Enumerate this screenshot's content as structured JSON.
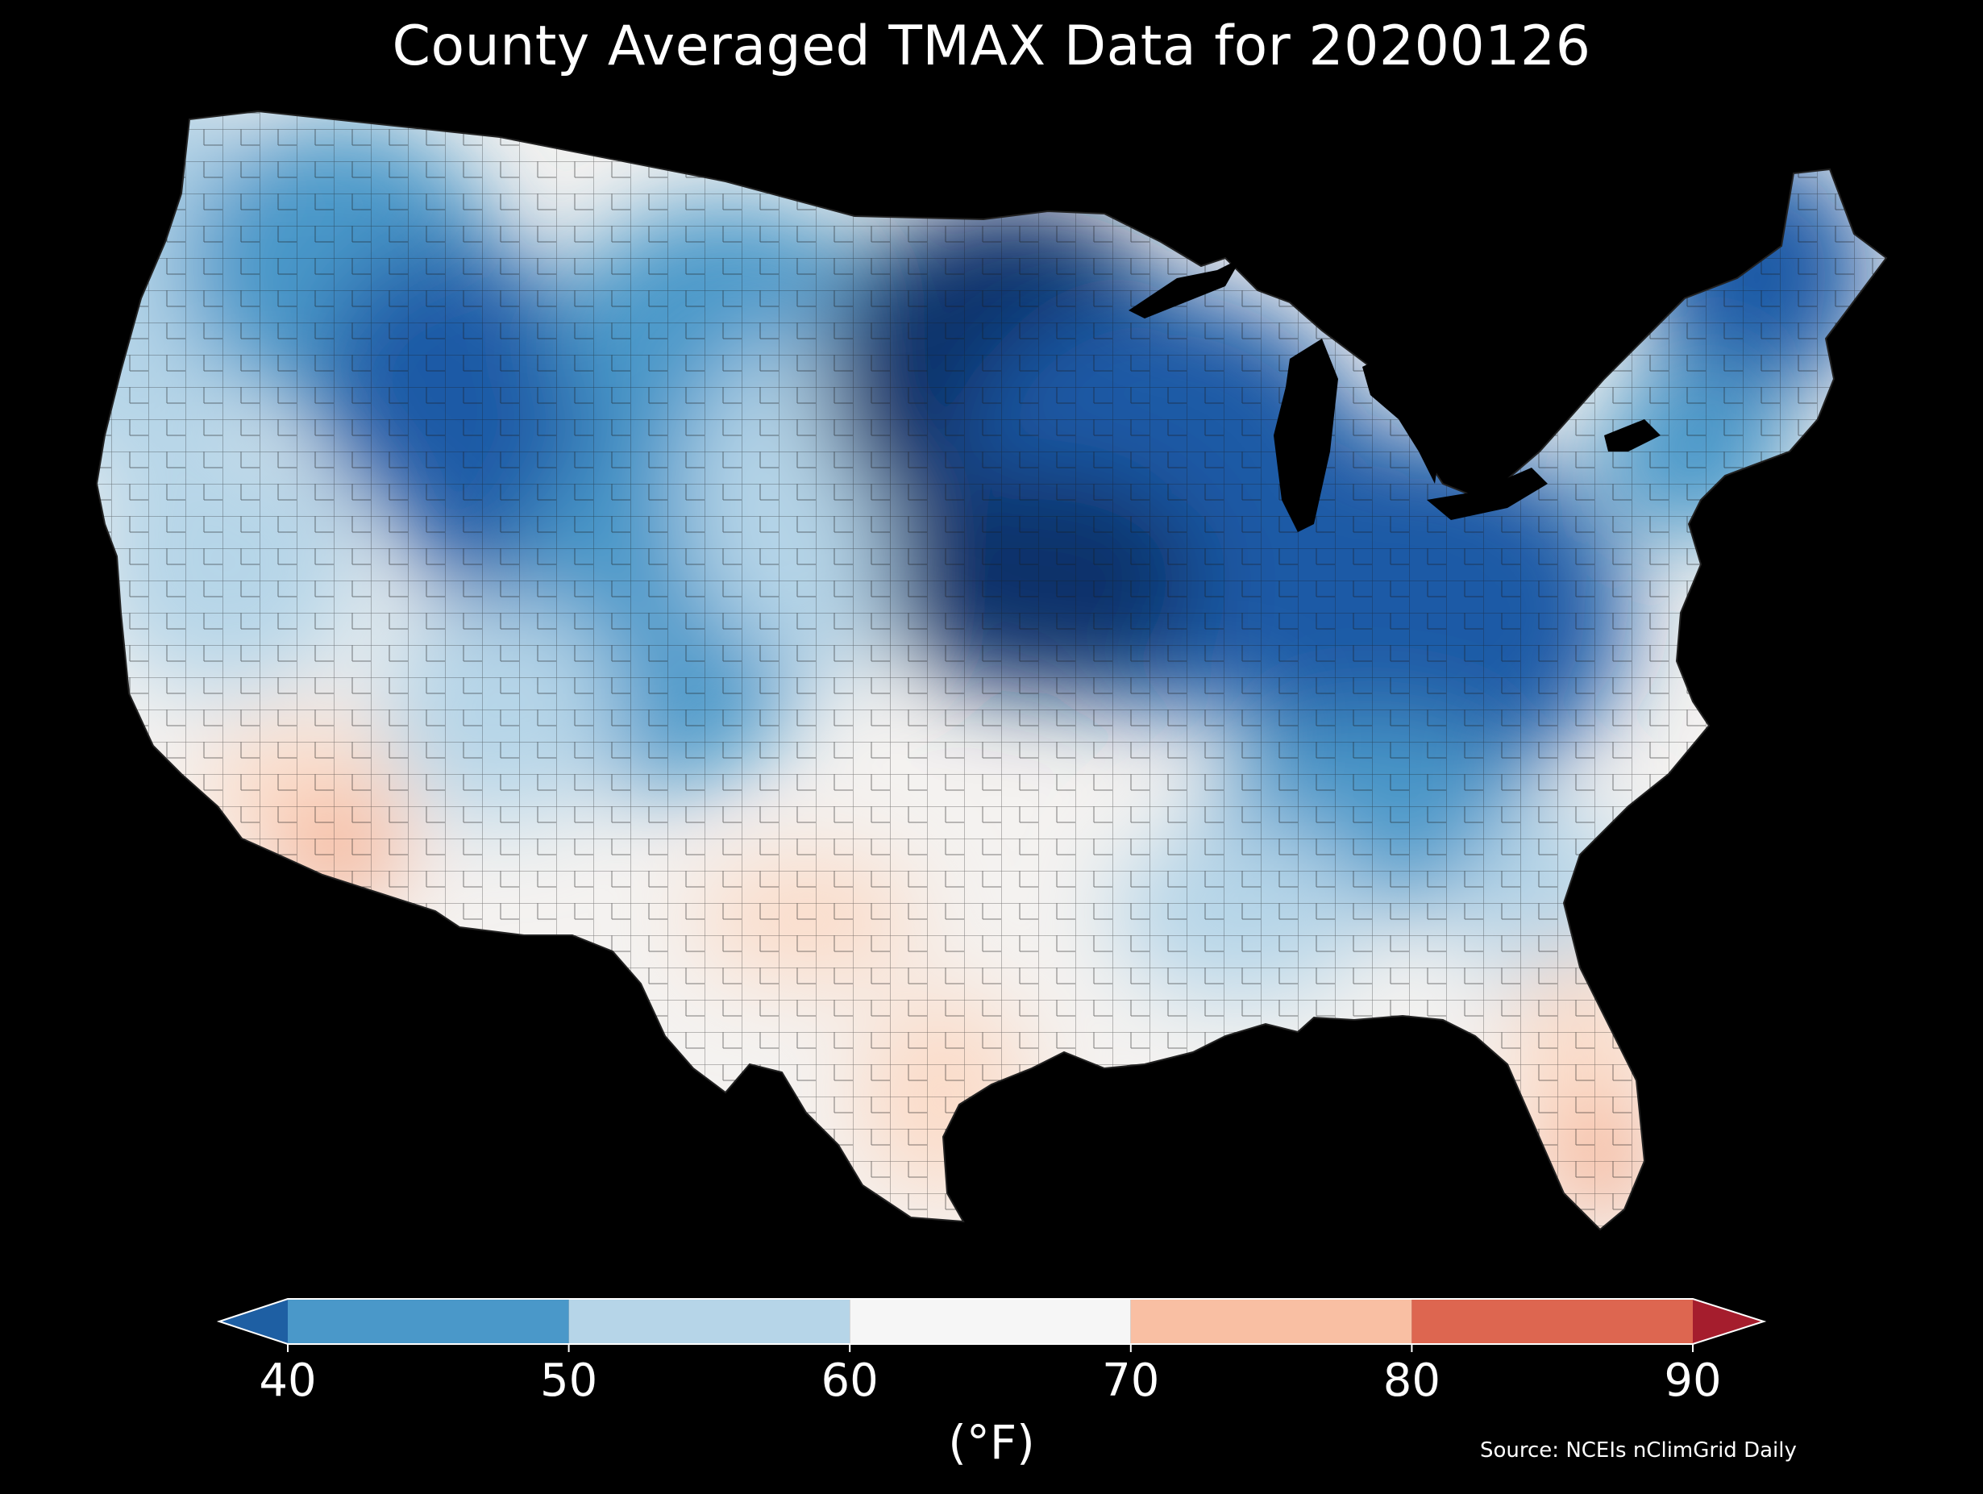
{
  "title": "County Averaged TMAX Data for 20200126",
  "colorbar": {
    "ticks": [
      "40",
      "50",
      "60",
      "70",
      "80",
      "90"
    ],
    "units": "(°F)",
    "bins": [
      {
        "from": 40,
        "to": 50,
        "color": "#4a98c9"
      },
      {
        "from": 50,
        "to": 60,
        "color": "#b6d5e8"
      },
      {
        "from": 60,
        "to": 70,
        "color": "#f6f6f6"
      },
      {
        "from": 70,
        "to": 80,
        "color": "#f9bfa3"
      },
      {
        "from": 80,
        "to": 90,
        "color": "#dd6650"
      }
    ],
    "under_color": "#1e5fa3",
    "over_color": "#a51d2d"
  },
  "source": "Source: NCEIs nClimGrid Daily",
  "colors": {
    "background": "#000000",
    "county_border": "#1a1a1a",
    "cold_core": "#08306b",
    "dark_blue": "#1b5aa6",
    "mid_blue": "#4a98c9",
    "light_blue": "#b6d5e8",
    "near_white": "#f4f2f0",
    "light_salmon": "#fbdcc9",
    "salmon": "#f4a582"
  }
}
